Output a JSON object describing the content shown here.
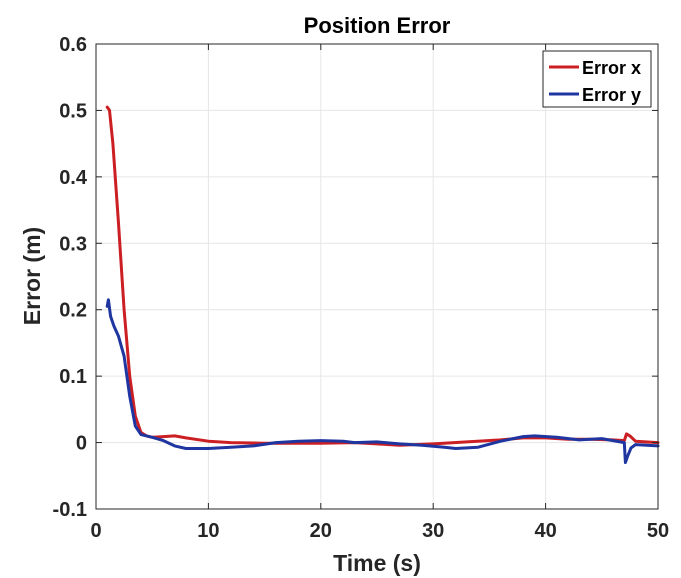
{
  "chart_data": {
    "type": "line",
    "title": "Position Error",
    "xlabel": "Time (s)",
    "ylabel": "Error (m)",
    "xlim": [
      0,
      50
    ],
    "ylim": [
      -0.1,
      0.6
    ],
    "xticks": [
      0,
      10,
      20,
      30,
      40,
      50
    ],
    "yticks": [
      -0.1,
      0,
      0.1,
      0.2,
      0.3,
      0.4,
      0.5,
      0.6
    ],
    "xtick_labels": [
      "0",
      "10",
      "20",
      "30",
      "40",
      "50"
    ],
    "ytick_labels": [
      "-0.1",
      "0",
      "0.1",
      "0.2",
      "0.3",
      "0.4",
      "0.5",
      "0.6"
    ],
    "grid": true,
    "legend_position": "top-right",
    "series": [
      {
        "name": "Error x",
        "color": "#cc1f24",
        "x": [
          1.0,
          1.2,
          1.5,
          2.0,
          2.5,
          3.0,
          3.5,
          4.0,
          4.5,
          5.0,
          6.0,
          7.0,
          8.0,
          10.0,
          12.0,
          15.0,
          17.0,
          20.0,
          23.0,
          25.0,
          27.0,
          30.0,
          33.0,
          36.0,
          38.0,
          40.0,
          42.0,
          44.0,
          46.0,
          47.0,
          47.2,
          47.5,
          48.0,
          50.0
        ],
        "y": [
          0.505,
          0.5,
          0.45,
          0.33,
          0.2,
          0.1,
          0.04,
          0.015,
          0.01,
          0.008,
          0.009,
          0.01,
          0.007,
          0.002,
          0.0,
          -0.001,
          -0.001,
          -0.001,
          0.0,
          -0.002,
          -0.004,
          -0.002,
          0.001,
          0.004,
          0.007,
          0.007,
          0.005,
          0.005,
          0.004,
          0.003,
          0.013,
          0.01,
          0.002,
          0.0
        ]
      },
      {
        "name": "Error y",
        "color": "#1f35a0",
        "x": [
          1.0,
          1.1,
          1.3,
          1.6,
          2.0,
          2.5,
          3.0,
          3.5,
          4.0,
          4.5,
          5.0,
          6.0,
          7.0,
          8.0,
          10.0,
          12.0,
          14.0,
          16.0,
          18.0,
          20.0,
          22.0,
          23.0,
          25.0,
          27.0,
          29.0,
          31.0,
          32.0,
          34.0,
          36.0,
          38.0,
          39.0,
          41.0,
          43.0,
          45.0,
          46.0,
          47.0,
          47.1,
          47.3,
          47.6,
          48.0,
          49.0,
          50.0
        ],
        "y": [
          0.205,
          0.215,
          0.19,
          0.175,
          0.16,
          0.13,
          0.07,
          0.025,
          0.012,
          0.01,
          0.008,
          0.003,
          -0.005,
          -0.009,
          -0.009,
          -0.007,
          -0.005,
          0.0,
          0.002,
          0.003,
          0.002,
          0.0,
          0.001,
          -0.002,
          -0.004,
          -0.007,
          -0.009,
          -0.007,
          0.002,
          0.009,
          0.01,
          0.008,
          0.004,
          0.006,
          0.003,
          0.0,
          -0.03,
          -0.02,
          -0.008,
          -0.003,
          -0.004,
          -0.005
        ]
      }
    ]
  }
}
